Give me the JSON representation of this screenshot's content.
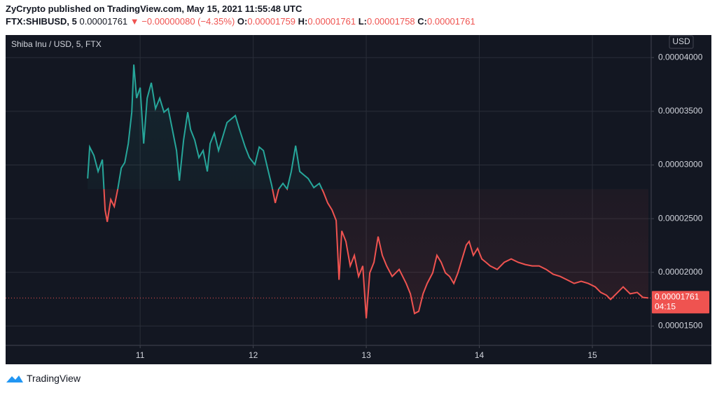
{
  "header": {
    "published": "ZyCrypto published on TradingView.com, May 15, 2021 11:55:48 UTC",
    "symbol": "FTX:SHIBUSD, 5",
    "last": "0.00001761",
    "arrow": "▼",
    "change": "−0.00000080 (−4.35%)",
    "open_label": "O:",
    "open": "0.00001759",
    "high_label": "H:",
    "high": "0.00001761",
    "low_label": "L:",
    "low": "0.00001758",
    "close_label": "C:",
    "close": "0.00001761"
  },
  "footer": {
    "brand": "TradingView"
  },
  "chart_data": {
    "type": "baseline",
    "currency": "USD",
    "countdown": "04:15",
    "baseline": 2.776e-05,
    "above_color": "#26a69a",
    "below_color": "#ef5350",
    "grid": true,
    "xlim": [
      9.81,
      15.52
    ],
    "xticks": [
      11,
      12,
      13,
      14,
      15
    ],
    "ylim": [
      1.32e-05,
      4.21e-05
    ],
    "yticks": [
      {
        "value": 1.5e-05,
        "label": "0.00001500"
      },
      {
        "value": 2e-05,
        "label": "0.00002000"
      },
      {
        "value": 2.5e-05,
        "label": "0.00002500"
      },
      {
        "value": 3e-05,
        "label": "0.00003000"
      },
      {
        "value": 3.5e-05,
        "label": "0.00003500"
      },
      {
        "value": 4e-05,
        "label": "0.00004000"
      }
    ],
    "x": [
      10.536,
      10.554,
      10.591,
      10.628,
      10.666,
      10.69,
      10.709,
      10.74,
      10.771,
      10.802,
      10.833,
      10.864,
      10.895,
      10.926,
      10.944,
      10.969,
      11.0,
      11.031,
      11.062,
      11.099,
      11.136,
      11.173,
      11.211,
      11.248,
      11.285,
      11.322,
      11.347,
      11.384,
      11.421,
      11.446,
      11.483,
      11.52,
      11.557,
      11.594,
      11.619,
      11.656,
      11.693,
      11.731,
      11.768,
      11.805,
      11.842,
      11.879,
      11.929,
      11.966,
      12.015,
      12.053,
      12.09,
      12.127,
      12.164,
      12.195,
      12.226,
      12.263,
      12.3,
      12.337,
      12.375,
      12.412,
      12.449,
      12.486,
      12.536,
      12.585,
      12.622,
      12.659,
      12.697,
      12.734,
      12.759,
      12.783,
      12.82,
      12.858,
      12.895,
      12.932,
      12.969,
      13.0,
      13.031,
      13.068,
      13.105,
      13.142,
      13.18,
      13.229,
      13.291,
      13.353,
      13.39,
      13.427,
      13.464,
      13.502,
      13.539,
      13.588,
      13.625,
      13.663,
      13.7,
      13.737,
      13.774,
      13.811,
      13.848,
      13.885,
      13.91,
      13.947,
      13.985,
      14.022,
      14.059,
      14.096,
      14.158,
      14.22,
      14.282,
      14.344,
      14.406,
      14.467,
      14.529,
      14.591,
      14.653,
      14.715,
      14.777,
      14.839,
      14.901,
      14.963,
      15.025,
      15.074,
      15.124,
      15.161,
      15.211,
      15.272,
      15.334,
      15.396,
      15.446,
      15.495
    ],
    "series": [
      {
        "name": "Shiba Inu / USD, 5, FTX",
        "values": [
          2.874e-05,
          3.167e-05,
          3.089e-05,
          2.939e-05,
          3.05e-05,
          2.581e-05,
          2.47e-05,
          2.678e-05,
          2.613e-05,
          2.776e-05,
          2.971e-05,
          3.023e-05,
          3.199e-05,
          3.492e-05,
          3.935e-05,
          3.622e-05,
          3.72e-05,
          3.199e-05,
          3.622e-05,
          3.766e-05,
          3.525e-05,
          3.622e-05,
          3.492e-05,
          3.525e-05,
          3.329e-05,
          3.134e-05,
          2.854e-05,
          3.232e-05,
          3.492e-05,
          3.329e-05,
          3.232e-05,
          3.069e-05,
          3.134e-05,
          2.939e-05,
          3.199e-05,
          3.297e-05,
          3.134e-05,
          3.264e-05,
          3.395e-05,
          3.427e-05,
          3.46e-05,
          3.329e-05,
          3.167e-05,
          3.069e-05,
          3.004e-05,
          3.167e-05,
          3.134e-05,
          2.971e-05,
          2.809e-05,
          2.646e-05,
          2.776e-05,
          2.828e-05,
          2.776e-05,
          2.939e-05,
          3.18e-05,
          2.939e-05,
          2.906e-05,
          2.874e-05,
          2.789e-05,
          2.828e-05,
          2.744e-05,
          2.646e-05,
          2.581e-05,
          2.483e-05,
          1.93e-05,
          2.386e-05,
          2.288e-05,
          2.06e-05,
          2.158e-05,
          1.962e-05,
          2.06e-05,
          1.572e-05,
          1.995e-05,
          2.093e-05,
          2.333e-05,
          2.158e-05,
          2.06e-05,
          1.962e-05,
          2.027e-05,
          1.897e-05,
          1.8e-05,
          1.617e-05,
          1.637e-05,
          1.8e-05,
          1.897e-05,
          1.995e-05,
          2.158e-05,
          2.093e-05,
          1.995e-05,
          1.962e-05,
          1.897e-05,
          1.995e-05,
          2.125e-05,
          2.255e-05,
          2.288e-05,
          2.158e-05,
          2.223e-05,
          2.125e-05,
          2.093e-05,
          2.06e-05,
          2.027e-05,
          2.093e-05,
          2.125e-05,
          2.093e-05,
          2.073e-05,
          2.06e-05,
          2.06e-05,
          2.027e-05,
          1.982e-05,
          1.962e-05,
          1.93e-05,
          1.897e-05,
          1.917e-05,
          1.897e-05,
          1.865e-05,
          1.813e-05,
          1.787e-05,
          1.748e-05,
          1.8e-05,
          1.865e-05,
          1.8e-05,
          1.813e-05,
          1.767e-05,
          1.761e-05
        ]
      }
    ]
  }
}
